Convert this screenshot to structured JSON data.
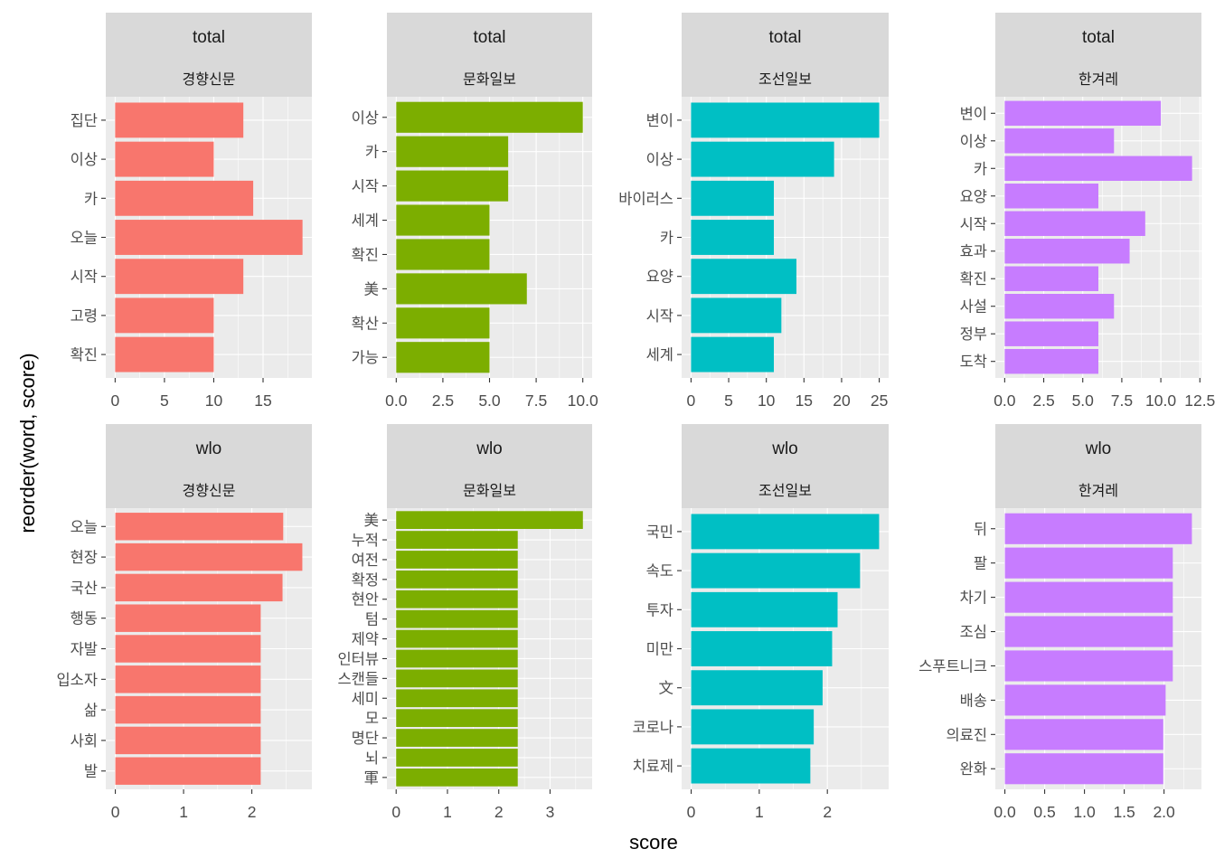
{
  "chart_data": {
    "type": "bar",
    "orientation": "horizontal",
    "facet_layout": "2 rows x 4 columns, free scales",
    "xlabel": "score",
    "ylabel": "reorder(word, score)",
    "grid": true,
    "legend": "none",
    "colors": {
      "경향신문": "#F8766D",
      "문화일보": "#7CAE00",
      "조선일보": "#00BFC4",
      "한겨레": "#C77CFF"
    },
    "panels": [
      {
        "facet1": "total",
        "facet2": "경향신문",
        "color": "#F8766D",
        "xlim": [
          -0.95,
          19.95
        ],
        "xticks": [
          0,
          5,
          10,
          15
        ],
        "xtick_labels": [
          "0",
          "5",
          "10",
          "15"
        ],
        "categories": [
          "집단",
          "이상",
          "카",
          "오늘",
          "시작",
          "고령",
          "확진"
        ],
        "values": [
          13,
          10,
          14,
          19,
          13,
          10,
          10
        ]
      },
      {
        "facet1": "total",
        "facet2": "문화일보",
        "color": "#7CAE00",
        "xlim": [
          -0.5,
          10.5
        ],
        "xticks": [
          0,
          2.5,
          5,
          7.5,
          10
        ],
        "xtick_labels": [
          "0.0",
          "2.5",
          "5.0",
          "7.5",
          "10.0"
        ],
        "categories": [
          "이상",
          "카",
          "시작",
          "세계",
          "확진",
          "美",
          "확산",
          "가능"
        ],
        "values": [
          10,
          6,
          6,
          5,
          5,
          7,
          5,
          5
        ]
      },
      {
        "facet1": "total",
        "facet2": "조선일보",
        "color": "#00BFC4",
        "xlim": [
          -1.25,
          26.25
        ],
        "xticks": [
          0,
          5,
          10,
          15,
          20,
          25
        ],
        "xtick_labels": [
          "0",
          "5",
          "10",
          "15",
          "20",
          "25"
        ],
        "categories": [
          "변이",
          "이상",
          "바이러스",
          "카",
          "요양",
          "시작",
          "세계"
        ],
        "values": [
          25,
          19,
          11,
          11,
          14,
          12,
          11
        ]
      },
      {
        "facet1": "total",
        "facet2": "한겨레",
        "color": "#C77CFF",
        "xlim": [
          -0.6,
          12.6
        ],
        "xticks": [
          0,
          2.5,
          5,
          7.5,
          10,
          12.5
        ],
        "xtick_labels": [
          "0.0",
          "2.5",
          "5.0",
          "7.5",
          "10.0",
          "12.5"
        ],
        "categories": [
          "변이",
          "이상",
          "카",
          "요양",
          "시작",
          "효과",
          "확진",
          "사설",
          "정부",
          "도착"
        ],
        "values": [
          10,
          7,
          12,
          6,
          9,
          8,
          6,
          7,
          6,
          6
        ]
      },
      {
        "facet1": "wlo",
        "facet2": "경향신문",
        "color": "#F8766D",
        "xlim": [
          -0.14,
          2.88
        ],
        "xticks": [
          0,
          1,
          2
        ],
        "xtick_labels": [
          "0",
          "1",
          "2"
        ],
        "categories": [
          "오늘",
          "현장",
          "국산",
          "행동",
          "자발",
          "입소자",
          "삶",
          "사회",
          "발"
        ],
        "values": [
          2.46,
          2.74,
          2.45,
          2.13,
          2.13,
          2.13,
          2.13,
          2.13,
          2.13
        ]
      },
      {
        "facet1": "wlo",
        "facet2": "문화일보",
        "color": "#7CAE00",
        "xlim": [
          -0.18,
          3.82
        ],
        "xticks": [
          0,
          1,
          2,
          3
        ],
        "xtick_labels": [
          "0",
          "1",
          "2",
          "3"
        ],
        "categories": [
          "美",
          "누적",
          "여전",
          "확정",
          "현안",
          "텀",
          "제약",
          "인터뷰",
          "스캔들",
          "세미",
          "모",
          "명단",
          "뇌",
          "軍"
        ],
        "values": [
          3.64,
          2.37,
          2.37,
          2.37,
          2.37,
          2.37,
          2.37,
          2.37,
          2.37,
          2.37,
          2.37,
          2.37,
          2.37,
          2.37
        ]
      },
      {
        "facet1": "wlo",
        "facet2": "조선일보",
        "color": "#00BFC4",
        "xlim": [
          -0.14,
          2.9
        ],
        "xticks": [
          0,
          1,
          2
        ],
        "xtick_labels": [
          "0",
          "1",
          "2"
        ],
        "categories": [
          "국민",
          "속도",
          "투자",
          "미만",
          "文",
          "코로나",
          "치료제"
        ],
        "values": [
          2.76,
          2.48,
          2.15,
          2.07,
          1.93,
          1.8,
          1.75
        ]
      },
      {
        "facet1": "wlo",
        "facet2": "한겨레",
        "color": "#C77CFF",
        "xlim": [
          -0.12,
          2.47
        ],
        "xticks": [
          0,
          0.5,
          1,
          1.5,
          2
        ],
        "xtick_labels": [
          "0.0",
          "0.5",
          "1.0",
          "1.5",
          "2.0"
        ],
        "categories": [
          "뒤",
          "팔",
          "차기",
          "조심",
          "스푸트니크",
          "배송",
          "의료진",
          "완화"
        ],
        "values": [
          2.35,
          2.11,
          2.11,
          2.11,
          2.11,
          2.02,
          1.99,
          1.99
        ]
      }
    ]
  }
}
